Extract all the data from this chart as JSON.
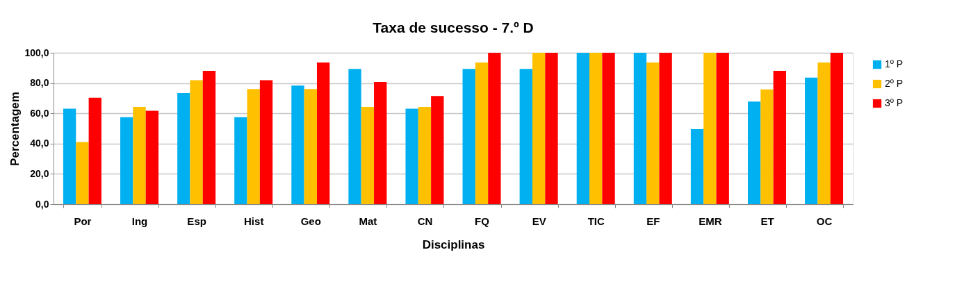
{
  "chart_data": {
    "type": "bar",
    "title": "Taxa de sucesso - 7.º D",
    "xlabel": "Disciplinas",
    "ylabel": "Percentagem",
    "categories": [
      "Por",
      "Ing",
      "Esp",
      "Hist",
      "Geo",
      "Mat",
      "CN",
      "FQ",
      "EV",
      "TIC",
      "EF",
      "EMR",
      "ET",
      "OC"
    ],
    "series": [
      {
        "name": "1º P",
        "color": "#00b0f0",
        "values": [
          63.1,
          57.4,
          73.4,
          57.4,
          78.3,
          89.3,
          63.1,
          89.3,
          89.3,
          100,
          100,
          49.5,
          67.8,
          83.6
        ]
      },
      {
        "name": "2º P",
        "color": "#ffc000",
        "values": [
          41.0,
          64.2,
          81.9,
          76.0,
          76.0,
          64.2,
          64.2,
          93.6,
          100,
          100,
          93.6,
          100,
          75.8,
          93.6
        ]
      },
      {
        "name": "3º P",
        "color": "#ff0000",
        "values": [
          70.3,
          61.7,
          88.1,
          81.9,
          93.6,
          80.7,
          71.5,
          100,
          100,
          100,
          100,
          100,
          88.1,
          100
        ]
      }
    ],
    "ylim": [
      0,
      100
    ],
    "yticks": [
      {
        "value": 0,
        "label": "0,0"
      },
      {
        "value": 20,
        "label": "20,0"
      },
      {
        "value": 40,
        "label": "40,0"
      },
      {
        "value": 60,
        "label": "60,0"
      },
      {
        "value": 80,
        "label": "80,0"
      },
      {
        "value": 100,
        "label": "100,0"
      }
    ],
    "grid": "y",
    "legend": "right"
  }
}
